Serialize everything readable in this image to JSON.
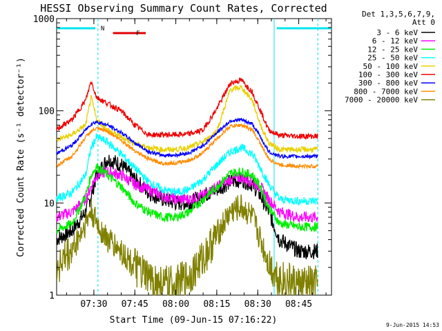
{
  "chart_data": {
    "type": "line",
    "title": "HESSI Observing Summary Count Rates, Corrected",
    "xlabel": "Start Time (09-Jun-15 07:16:22)",
    "ylabel": "Corrected Count Rate (s⁻¹ detector⁻¹)",
    "y_scale": "log",
    "ylim": [
      1,
      1000
    ],
    "xlim": [
      "07:16:22",
      "08:57:00"
    ],
    "x_ticks": [
      "07:30",
      "07:45",
      "08:00",
      "08:15",
      "08:30",
      "08:45"
    ],
    "y_ticks": [
      "1",
      "10",
      "100",
      "1000"
    ],
    "legend_header": [
      "Det 1,3,5,6,7,9,",
      "Att 0"
    ],
    "legend_position": "right",
    "footer": "9-Jun-2015 14:53",
    "flags": [
      {
        "label": "N",
        "color": "#00e5ee",
        "start": "07:16:22",
        "end": "07:30:30"
      },
      {
        "label": "",
        "color": "#00e5ee",
        "start": "08:37:00",
        "end": "08:57:00"
      },
      {
        "label": "F",
        "color": "#e00000",
        "start": "07:37:00",
        "end": "07:49:00"
      }
    ],
    "vlines": [
      "07:31:30",
      "08:36:00",
      "08:52:00"
    ],
    "series": [
      {
        "name": "3 - 6 keV",
        "color": "#000000",
        "x": [
          "07:16",
          "07:22",
          "07:27",
          "07:29",
          "07:31",
          "07:35",
          "07:40",
          "07:45",
          "07:50",
          "07:55",
          "08:00",
          "08:05",
          "08:10",
          "08:15",
          "08:20",
          "08:24",
          "08:28",
          "08:31",
          "08:34",
          "08:38",
          "08:45",
          "08:52"
        ],
        "y": [
          4,
          5,
          8,
          12,
          20,
          30,
          26,
          18,
          13,
          11,
          10,
          10,
          12,
          14,
          17,
          18,
          16,
          12,
          8,
          4,
          3,
          3
        ]
      },
      {
        "name": "6 - 12 keV",
        "color": "#ff00ff",
        "x": [
          "07:16",
          "07:22",
          "07:27",
          "07:29",
          "07:31",
          "07:35",
          "07:40",
          "07:45",
          "07:50",
          "07:55",
          "08:00",
          "08:05",
          "08:10",
          "08:15",
          "08:20",
          "08:24",
          "08:28",
          "08:31",
          "08:34",
          "08:38",
          "08:45",
          "08:52"
        ],
        "y": [
          7,
          8,
          11,
          15,
          20,
          22,
          20,
          16,
          14,
          12,
          11,
          11,
          12,
          15,
          18,
          19,
          17,
          15,
          11,
          8,
          7,
          7
        ]
      },
      {
        "name": "12 - 25 keV",
        "color": "#00ee00",
        "x": [
          "07:16",
          "07:22",
          "07:27",
          "07:29",
          "07:31",
          "07:35",
          "07:40",
          "07:45",
          "07:50",
          "07:55",
          "08:00",
          "08:05",
          "08:10",
          "08:15",
          "08:20",
          "08:24",
          "08:28",
          "08:31",
          "08:34",
          "08:38",
          "08:45",
          "08:52"
        ],
        "y": [
          5,
          6,
          12,
          20,
          25,
          20,
          15,
          10,
          8,
          7,
          7,
          8,
          11,
          15,
          21,
          22,
          20,
          15,
          9,
          6,
          5.5,
          5.5
        ]
      },
      {
        "name": "25 - 50 keV",
        "color": "#00ffff",
        "x": [
          "07:16",
          "07:22",
          "07:27",
          "07:29",
          "07:31",
          "07:35",
          "07:40",
          "07:45",
          "07:50",
          "07:55",
          "08:00",
          "08:05",
          "08:10",
          "08:15",
          "08:20",
          "08:24",
          "08:28",
          "08:31",
          "08:34",
          "08:38",
          "08:45",
          "08:52"
        ],
        "y": [
          11,
          13,
          20,
          40,
          52,
          46,
          34,
          24,
          17,
          14,
          13,
          14,
          18,
          26,
          36,
          40,
          34,
          24,
          16,
          11,
          10.5,
          10.5
        ]
      },
      {
        "name": "50 - 100 keV",
        "color": "#e8d000",
        "x": [
          "07:16",
          "07:22",
          "07:27",
          "07:29",
          "07:31",
          "07:35",
          "07:40",
          "07:45",
          "07:50",
          "07:55",
          "08:00",
          "08:05",
          "08:10",
          "08:15",
          "08:20",
          "08:24",
          "08:28",
          "08:31",
          "08:34",
          "08:38",
          "08:45",
          "08:52"
        ],
        "y": [
          48,
          55,
          70,
          140,
          80,
          62,
          52,
          44,
          40,
          38,
          38,
          40,
          46,
          60,
          170,
          180,
          130,
          70,
          45,
          38,
          38,
          38
        ]
      },
      {
        "name": "100 - 300 keV",
        "color": "#ee0000",
        "x": [
          "07:16",
          "07:22",
          "07:27",
          "07:29",
          "07:31",
          "07:35",
          "07:40",
          "07:45",
          "07:50",
          "07:55",
          "08:00",
          "08:05",
          "08:10",
          "08:15",
          "08:20",
          "08:24",
          "08:28",
          "08:31",
          "08:34",
          "08:38",
          "08:45",
          "08:52"
        ],
        "y": [
          62,
          80,
          130,
          210,
          140,
          120,
          100,
          70,
          55,
          55,
          55,
          56,
          62,
          105,
          200,
          215,
          160,
          100,
          62,
          54,
          53,
          53
        ]
      },
      {
        "name": "300 - 800 keV",
        "color": "#0000ff",
        "x": [
          "07:16",
          "07:22",
          "07:27",
          "07:29",
          "07:31",
          "07:35",
          "07:40",
          "07:45",
          "07:50",
          "07:55",
          "08:00",
          "08:05",
          "08:10",
          "08:15",
          "08:20",
          "08:24",
          "08:28",
          "08:31",
          "08:34",
          "08:38",
          "08:45",
          "08:52"
        ],
        "y": [
          34,
          42,
          62,
          72,
          76,
          70,
          58,
          45,
          36,
          33,
          33,
          35,
          42,
          58,
          78,
          80,
          72,
          52,
          36,
          32,
          32,
          32
        ]
      },
      {
        "name": "800 - 7000 keV",
        "color": "#ff8c00",
        "x": [
          "07:16",
          "07:22",
          "07:27",
          "07:29",
          "07:31",
          "07:35",
          "07:40",
          "07:45",
          "07:50",
          "07:55",
          "08:00",
          "08:05",
          "08:10",
          "08:15",
          "08:20",
          "08:24",
          "08:28",
          "08:31",
          "08:34",
          "08:38",
          "08:45",
          "08:52"
        ],
        "y": [
          25,
          32,
          52,
          60,
          64,
          60,
          48,
          37,
          30,
          27,
          27,
          29,
          35,
          50,
          68,
          70,
          62,
          44,
          30,
          26,
          25,
          25
        ]
      },
      {
        "name": "7000 - 20000 keV",
        "color": "#808000",
        "x": [
          "07:16",
          "07:22",
          "07:27",
          "07:29",
          "07:31",
          "07:35",
          "07:40",
          "07:45",
          "07:50",
          "07:55",
          "08:00",
          "08:05",
          "08:10",
          "08:15",
          "08:20",
          "08:24",
          "08:28",
          "08:31",
          "08:34",
          "08:38",
          "08:45",
          "08:52"
        ],
        "y": [
          2,
          3,
          6,
          8,
          6,
          4,
          3,
          2,
          1.5,
          1.3,
          1.3,
          1.6,
          2.5,
          4.5,
          8,
          9,
          7,
          4,
          2.2,
          1.5,
          1.3,
          1.3
        ]
      }
    ]
  }
}
